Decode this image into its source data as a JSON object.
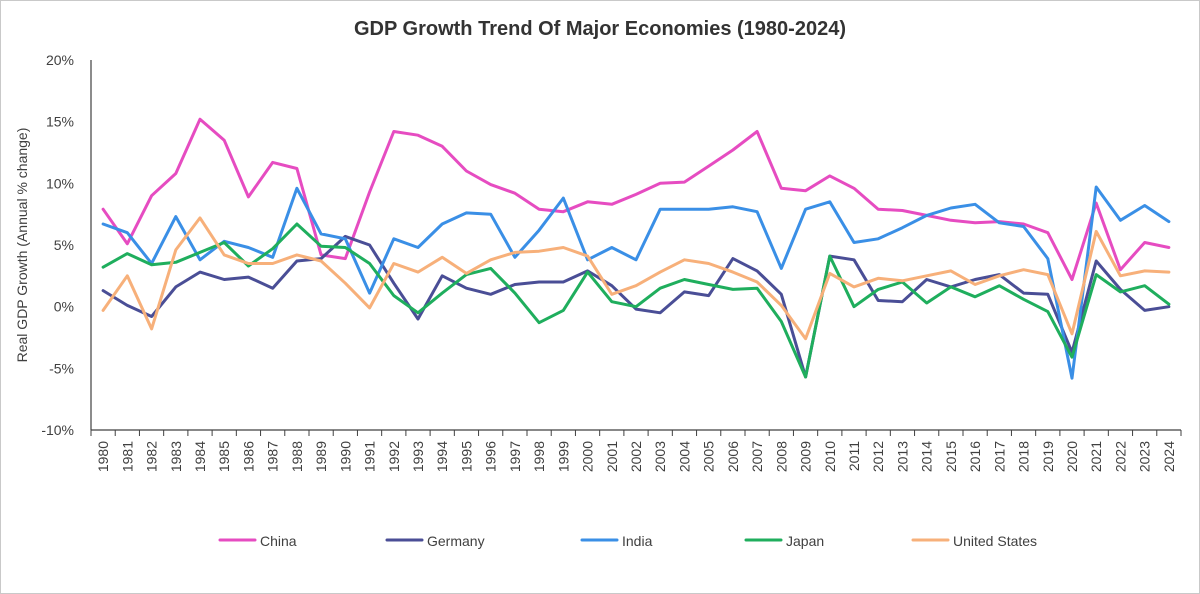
{
  "chart_data": {
    "type": "line",
    "title": "GDP Growth Trend Of Major Economies (1980-2024)",
    "xlabel": "",
    "ylabel": "Real GDP Growth (Annual % change)",
    "ylim": [
      -10,
      20
    ],
    "yticks": [
      -10,
      -5,
      0,
      5,
      10,
      15,
      20
    ],
    "ytick_labels": [
      "-10%",
      "-5%",
      "0%",
      "5%",
      "10%",
      "15%",
      "20%"
    ],
    "grid": false,
    "legend_position": "bottom",
    "categories": [
      "1980",
      "1981",
      "1982",
      "1983",
      "1984",
      "1985",
      "1986",
      "1987",
      "1988",
      "1989",
      "1990",
      "1991",
      "1992",
      "1993",
      "1994",
      "1995",
      "1996",
      "1997",
      "1998",
      "1999",
      "2000",
      "2001",
      "2002",
      "2003",
      "2004",
      "2005",
      "2006",
      "2007",
      "2008",
      "2009",
      "2010",
      "2011",
      "2012",
      "2013",
      "2014",
      "2015",
      "2016",
      "2017",
      "2018",
      "2019",
      "2020",
      "2021",
      "2022",
      "2023",
      "2024"
    ],
    "series": [
      {
        "name": "China",
        "color": "#e64cc1",
        "values": [
          7.9,
          5.1,
          9.0,
          10.8,
          15.2,
          13.5,
          8.9,
          11.7,
          11.2,
          4.2,
          3.9,
          9.3,
          14.2,
          13.9,
          13.0,
          11.0,
          9.9,
          9.2,
          7.9,
          7.7,
          8.5,
          8.3,
          9.1,
          10.0,
          10.1,
          11.4,
          12.7,
          14.2,
          9.6,
          9.4,
          10.6,
          9.6,
          7.9,
          7.8,
          7.4,
          7.0,
          6.8,
          6.9,
          6.7,
          6.0,
          2.2,
          8.4,
          3.0,
          5.2,
          4.8
        ]
      },
      {
        "name": "Germany",
        "color": "#4a4e96",
        "values": [
          1.3,
          0.1,
          -0.8,
          1.6,
          2.8,
          2.2,
          2.4,
          1.5,
          3.7,
          3.9,
          5.7,
          5.0,
          1.9,
          -1.0,
          2.5,
          1.5,
          1.0,
          1.8,
          2.0,
          2.0,
          2.9,
          1.7,
          -0.2,
          -0.5,
          1.2,
          0.9,
          3.9,
          2.9,
          1.0,
          -5.7,
          4.1,
          3.8,
          0.5,
          0.4,
          2.2,
          1.6,
          2.2,
          2.6,
          1.1,
          1.0,
          -3.7,
          3.7,
          1.4,
          -0.3,
          0.0
        ]
      },
      {
        "name": "India",
        "color": "#3a8fe6",
        "values": [
          6.7,
          6.0,
          3.5,
          7.3,
          3.8,
          5.3,
          4.8,
          4.0,
          9.6,
          5.9,
          5.5,
          1.1,
          5.5,
          4.8,
          6.7,
          7.6,
          7.5,
          4.0,
          6.2,
          8.8,
          3.8,
          4.8,
          3.8,
          7.9,
          7.9,
          7.9,
          8.1,
          7.7,
          3.1,
          7.9,
          8.5,
          5.2,
          5.5,
          6.4,
          7.4,
          8.0,
          8.3,
          6.8,
          6.5,
          3.9,
          -5.8,
          9.7,
          7.0,
          8.2,
          6.9
        ]
      },
      {
        "name": "Japan",
        "color": "#1fae5d",
        "values": [
          3.2,
          4.3,
          3.4,
          3.6,
          4.4,
          5.2,
          3.3,
          4.7,
          6.7,
          4.9,
          4.8,
          3.5,
          0.9,
          -0.5,
          1.1,
          2.6,
          3.1,
          1.1,
          -1.3,
          -0.3,
          2.8,
          0.4,
          0.0,
          1.5,
          2.2,
          1.8,
          1.4,
          1.5,
          -1.2,
          -5.7,
          4.1,
          0.0,
          1.4,
          2.0,
          0.3,
          1.6,
          0.8,
          1.7,
          0.6,
          -0.4,
          -4.1,
          2.6,
          1.2,
          1.7,
          0.2
        ]
      },
      {
        "name": "United States",
        "color": "#f7b07a",
        "values": [
          -0.3,
          2.5,
          -1.8,
          4.6,
          7.2,
          4.2,
          3.5,
          3.5,
          4.2,
          3.7,
          1.9,
          -0.1,
          3.5,
          2.8,
          4.0,
          2.7,
          3.8,
          4.4,
          4.5,
          4.8,
          4.1,
          1.0,
          1.7,
          2.8,
          3.8,
          3.5,
          2.8,
          2.0,
          0.1,
          -2.6,
          2.7,
          1.6,
          2.3,
          2.1,
          2.5,
          2.9,
          1.8,
          2.5,
          3.0,
          2.6,
          -2.2,
          6.1,
          2.5,
          2.9,
          2.8
        ]
      }
    ]
  }
}
